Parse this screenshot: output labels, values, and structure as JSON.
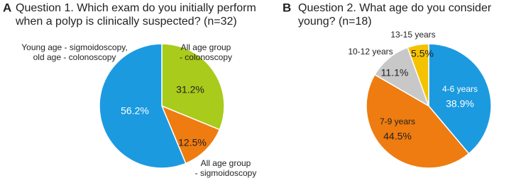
{
  "chart_data": [
    {
      "type": "pie",
      "panel": "A",
      "title": [
        "Question 1. Which exam do you initially perform",
        "when a polyp is clinically suspected? (n=32)"
      ],
      "categories": [
        [
          "All age group",
          "- colonoscopy"
        ],
        [
          "All age group",
          "- sigmoidoscopy"
        ],
        [
          "Young age - sigmoidoscopy,",
          "old age - colonoscopy"
        ]
      ],
      "values": [
        31.2,
        12.5,
        56.2
      ],
      "value_labels": [
        "31.2%",
        "12.5%",
        "56.2%"
      ],
      "colors": [
        "#a9cb1b",
        "#ee7c10",
        "#1b9ae0"
      ]
    },
    {
      "type": "pie",
      "panel": "B",
      "title": [
        "Question 2. What age do you consider",
        "young? (n=18)"
      ],
      "categories": [
        [
          "4-6 years"
        ],
        [
          "7-9 years"
        ],
        [
          "10-12 years"
        ],
        [
          "13-15 years"
        ]
      ],
      "values": [
        38.9,
        44.5,
        11.1,
        5.5
      ],
      "value_labels": [
        "38.9%",
        "44.5%",
        "11.1%",
        "5.5%"
      ],
      "colors": [
        "#1b9ae0",
        "#ee7c10",
        "#c8c8c8",
        "#f5c200"
      ]
    }
  ]
}
